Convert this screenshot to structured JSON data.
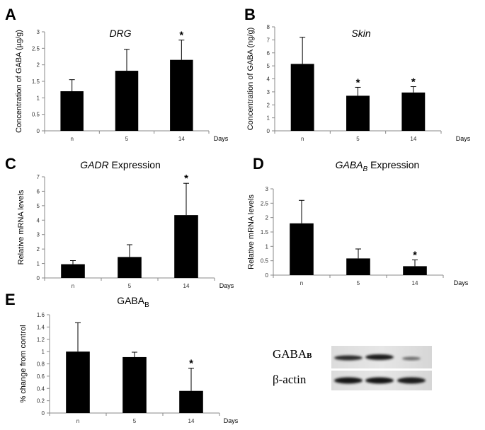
{
  "panels": {
    "A": "A",
    "B": "B",
    "C": "C",
    "D": "D",
    "E": "E"
  },
  "blot": {
    "label1": "GABA",
    "label1_sub": "B",
    "label2": "β-actin"
  },
  "chart_data": [
    {
      "id": "A",
      "type": "bar",
      "title": "DRG",
      "title_italic": true,
      "ylabel": "Concentration of GABA (µg/g)",
      "xlabel": "Days",
      "categories": [
        "n",
        "5",
        "14"
      ],
      "values": [
        1.2,
        1.82,
        2.15
      ],
      "errors": [
        0.35,
        0.65,
        0.6
      ],
      "significant": [
        false,
        false,
        true
      ],
      "ylim": [
        0,
        3
      ],
      "yticks": [
        "0",
        "0.5",
        "1",
        "1.5",
        "2",
        "2.5",
        "3"
      ]
    },
    {
      "id": "B",
      "type": "bar",
      "title": "Skin",
      "title_italic": true,
      "ylabel": "Concentration of GABA (ng/g)",
      "xlabel": "Days",
      "categories": [
        "n",
        "5",
        "14"
      ],
      "values": [
        5.15,
        2.7,
        2.95
      ],
      "errors": [
        2.05,
        0.65,
        0.45
      ],
      "significant": [
        false,
        true,
        true
      ],
      "ylim": [
        0,
        8
      ],
      "yticks": [
        "0",
        "1",
        "2",
        "3",
        "4",
        "5",
        "6",
        "7",
        "8"
      ]
    },
    {
      "id": "C",
      "type": "bar",
      "title": "GADR",
      "title_suffix": " Expression",
      "title_italic": true,
      "ylabel": "Relative mRNA levels",
      "xlabel": "Days",
      "categories": [
        "n",
        "5",
        "14"
      ],
      "values": [
        0.95,
        1.45,
        4.35
      ],
      "errors": [
        0.25,
        0.85,
        2.2
      ],
      "significant": [
        false,
        false,
        true
      ],
      "ylim": [
        0,
        7
      ],
      "yticks": [
        "0",
        "1",
        "2",
        "3",
        "4",
        "5",
        "6",
        "7"
      ]
    },
    {
      "id": "D",
      "type": "bar",
      "title": "GABA",
      "title_sub": "B",
      "title_suffix": " Expression",
      "title_italic": true,
      "ylabel": "Relative mRNA levels",
      "xlabel": "Days",
      "categories": [
        "n",
        "5",
        "14"
      ],
      "values": [
        1.8,
        0.58,
        0.31
      ],
      "errors": [
        0.8,
        0.33,
        0.22
      ],
      "significant": [
        false,
        false,
        true
      ],
      "ylim": [
        0,
        3
      ],
      "yticks": [
        "0",
        "0.5",
        "1",
        "1.5",
        "2",
        "2.5",
        "3"
      ]
    },
    {
      "id": "E",
      "type": "bar",
      "title": "GABA",
      "title_sub": "B",
      "title_italic": false,
      "ylabel": "% change from control",
      "xlabel": "Days",
      "categories": [
        "n",
        "5",
        "14"
      ],
      "values": [
        1.0,
        0.91,
        0.36
      ],
      "errors": [
        0.47,
        0.08,
        0.37
      ],
      "significant": [
        false,
        false,
        true
      ],
      "ylim": [
        0,
        1.6
      ],
      "yticks": [
        "0",
        "0.2",
        "0.4",
        "0.6",
        "0.8",
        "1",
        "1.2",
        "1.4",
        "1.6"
      ]
    }
  ]
}
